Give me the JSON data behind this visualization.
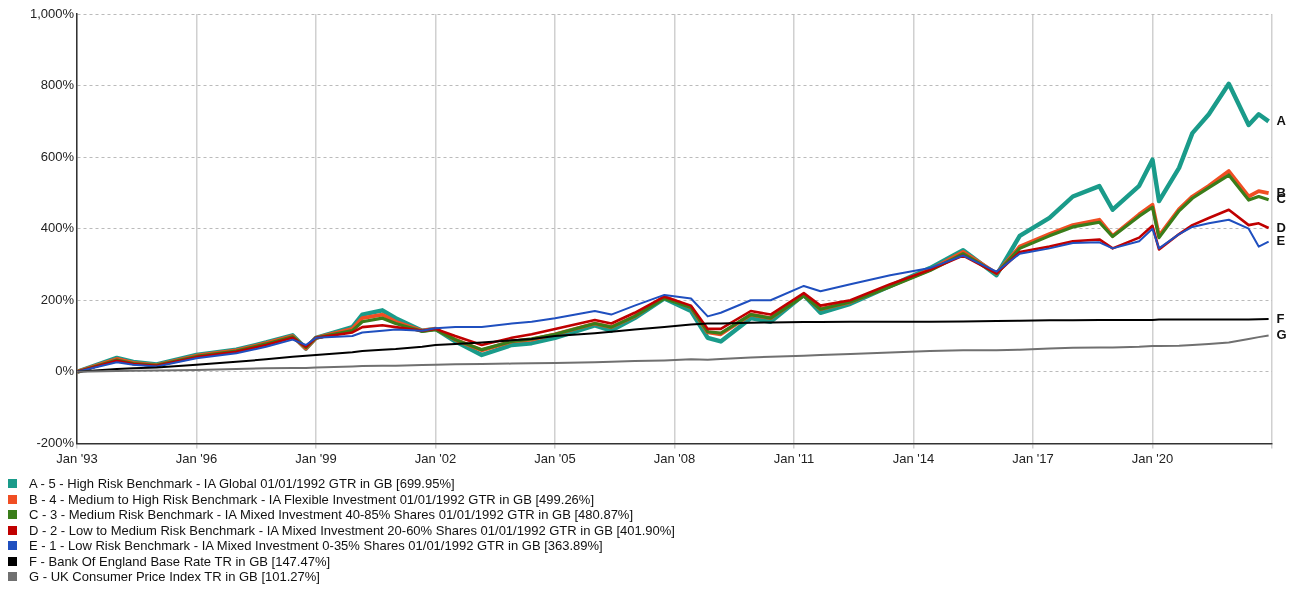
{
  "chart_data": {
    "type": "line",
    "x": [
      "1993-01",
      "1994-01",
      "1994-06",
      "1995-01",
      "1996-01",
      "1997-01",
      "1997-10",
      "1998-06",
      "1998-10",
      "1999-01",
      "1999-12",
      "2000-03",
      "2000-09",
      "2001-01",
      "2001-09",
      "2002-01",
      "2002-07",
      "2003-03",
      "2003-12",
      "2004-06",
      "2005-01",
      "2006-01",
      "2006-06",
      "2007-01",
      "2007-10",
      "2008-06",
      "2008-11",
      "2009-03",
      "2009-12",
      "2010-06",
      "2011-04",
      "2011-09",
      "2012-06",
      "2013-06",
      "2014-06",
      "2015-04",
      "2016-02",
      "2016-09",
      "2017-06",
      "2018-01",
      "2018-09",
      "2019-01",
      "2019-09",
      "2020-01",
      "2020-03",
      "2020-09",
      "2021-01",
      "2021-06",
      "2021-12",
      "2022-06",
      "2022-09",
      "2022-12"
    ],
    "series": [
      {
        "name": "A - 5 - High Risk Benchmark - IA Global 01/01/1992 GTR in GB [699.95%]",
        "color": "#1a9b8a",
        "values": [
          0,
          39,
          28,
          21,
          47,
          62,
          82,
          102,
          65,
          95,
          125,
          160,
          172,
          150,
          115,
          120,
          85,
          47,
          75,
          80,
          95,
          130,
          115,
          150,
          205,
          170,
          95,
          85,
          150,
          140,
          215,
          165,
          190,
          240,
          290,
          340,
          270,
          380,
          430,
          490,
          519,
          453,
          520,
          593,
          477,
          570,
          667,
          720,
          805,
          690,
          720,
          699.95
        ]
      },
      {
        "name": "B - 4 - Medium to High Risk Benchmark - IA Flexible Investment 01/01/1992 GTR in GB [499.26%]",
        "color": "#f04e23",
        "values": [
          0,
          36,
          25,
          19,
          45,
          60,
          80,
          100,
          65,
          95,
          120,
          150,
          160,
          140,
          115,
          120,
          90,
          60,
          85,
          90,
          105,
          135,
          125,
          155,
          210,
          180,
          110,
          105,
          160,
          150,
          215,
          175,
          195,
          240,
          285,
          335,
          275,
          350,
          385,
          410,
          425,
          380,
          440,
          467,
          380,
          455,
          490,
          520,
          561,
          490,
          505,
          499.26
        ]
      },
      {
        "name": "C - 3 - Medium Risk Benchmark - IA Mixed Investment 40-85% Shares 01/01/1992 GTR in GB [480.87%]",
        "color": "#3a7d1a",
        "values": [
          0,
          33,
          23,
          18,
          43,
          58,
          78,
          98,
          68,
          95,
          115,
          140,
          150,
          135,
          113,
          118,
          90,
          62,
          85,
          92,
          105,
          135,
          125,
          155,
          205,
          180,
          112,
          108,
          160,
          150,
          212,
          175,
          195,
          238,
          283,
          330,
          275,
          345,
          380,
          405,
          418,
          378,
          435,
          460,
          375,
          450,
          485,
          515,
          550,
          480,
          490,
          480.87
        ]
      },
      {
        "name": "D - 2 - Low to Medium Risk Benchmark - IA Mixed Investment 20-60% Shares 01/01/1992 GTR in GB [401.90%]",
        "color": "#c00000",
        "values": [
          0,
          31,
          22,
          17,
          41,
          56,
          75,
          95,
          70,
          95,
          110,
          125,
          130,
          125,
          115,
          120,
          100,
          75,
          95,
          105,
          120,
          145,
          135,
          165,
          210,
          185,
          120,
          120,
          170,
          160,
          220,
          185,
          200,
          245,
          285,
          325,
          275,
          335,
          350,
          365,
          370,
          345,
          375,
          408,
          342,
          385,
          410,
          430,
          453,
          410,
          415,
          401.9
        ]
      },
      {
        "name": "E - 1 - Low Risk Benchmark - IA Mixed Investment 0-35% Shares 01/01/1992 GTR in GB [363.89%]",
        "color": "#1f4fbf",
        "values": [
          0,
          27,
          20,
          15,
          38,
          52,
          70,
          90,
          75,
          95,
          100,
          110,
          115,
          118,
          115,
          122,
          125,
          125,
          135,
          140,
          150,
          170,
          160,
          185,
          215,
          205,
          155,
          165,
          200,
          200,
          240,
          225,
          245,
          270,
          290,
          325,
          280,
          330,
          345,
          360,
          362,
          345,
          365,
          400,
          345,
          385,
          405,
          415,
          425,
          400,
          350,
          363.89
        ]
      },
      {
        "name": "F - Bank Of England Base Rate TR in GB [147.47%]",
        "color": "#000000",
        "values": [
          0,
          8,
          10,
          12,
          20,
          28,
          35,
          42,
          45,
          47,
          55,
          58,
          62,
          64,
          70,
          75,
          78,
          82,
          88,
          92,
          100,
          108,
          112,
          118,
          125,
          132,
          135,
          135,
          137,
          138,
          139,
          139,
          140,
          140,
          140,
          141,
          142,
          143,
          144,
          144,
          145,
          145,
          145,
          145,
          146,
          146,
          146,
          146,
          146,
          146,
          147,
          147.47
        ]
      },
      {
        "name": "G - UK Consumer Price Index TR in GB [101.27%]",
        "color": "#707070",
        "values": [
          0,
          2,
          3,
          4,
          5,
          8,
          10,
          11,
          11,
          12,
          15,
          16,
          17,
          17,
          19,
          20,
          21,
          22,
          23,
          24,
          25,
          27,
          28,
          30,
          32,
          35,
          34,
          36,
          40,
          42,
          45,
          47,
          50,
          54,
          58,
          60,
          60,
          62,
          65,
          67,
          68,
          68,
          70,
          72,
          72,
          73,
          75,
          78,
          82,
          92,
          97,
          101.27
        ]
      }
    ],
    "xlim": [
      "1993-01-01",
      "2023-01-01"
    ],
    "xticks": [
      {
        "value": "1993-01",
        "label": "Jan '93"
      },
      {
        "value": "1996-01",
        "label": "Jan '96"
      },
      {
        "value": "1999-01",
        "label": "Jan '99"
      },
      {
        "value": "2002-01",
        "label": "Jan '02"
      },
      {
        "value": "2005-01",
        "label": "Jan '05"
      },
      {
        "value": "2008-01",
        "label": "Jan '08"
      },
      {
        "value": "2011-01",
        "label": "Jan '11"
      },
      {
        "value": "2014-01",
        "label": "Jan '14"
      },
      {
        "value": "2017-01",
        "label": "Jan '17"
      },
      {
        "value": "2020-01",
        "label": "Jan '20"
      },
      {
        "value": "2023-01",
        "label": null
      }
    ],
    "ylim": [
      -200,
      1000
    ],
    "yticks": [
      {
        "value": -200,
        "label": "-200%"
      },
      {
        "value": 0,
        "label": "0%"
      },
      {
        "value": 200,
        "label": "200%"
      },
      {
        "value": 400,
        "label": "400%"
      },
      {
        "value": 600,
        "label": "600%"
      },
      {
        "value": 800,
        "label": "800%"
      },
      {
        "value": 1000,
        "label": "1,000%"
      }
    ],
    "annotations": [
      {
        "text": "A",
        "x": "2022-12",
        "y": 699.95
      },
      {
        "text": "B",
        "x": "2022-12",
        "y": 499.26
      },
      {
        "text": "C",
        "x": "2022-12",
        "y": 480.87
      },
      {
        "text": "D",
        "x": "2022-12",
        "y": 401.9
      },
      {
        "text": "E",
        "x": "2022-12",
        "y": 363.89
      },
      {
        "text": "F",
        "x": "2022-12",
        "y": 147.47
      },
      {
        "text": "G",
        "x": "2022-12",
        "y": 101.27
      }
    ],
    "grid": true,
    "legend": "bottom",
    "marker": "none",
    "line_style": "solid"
  }
}
